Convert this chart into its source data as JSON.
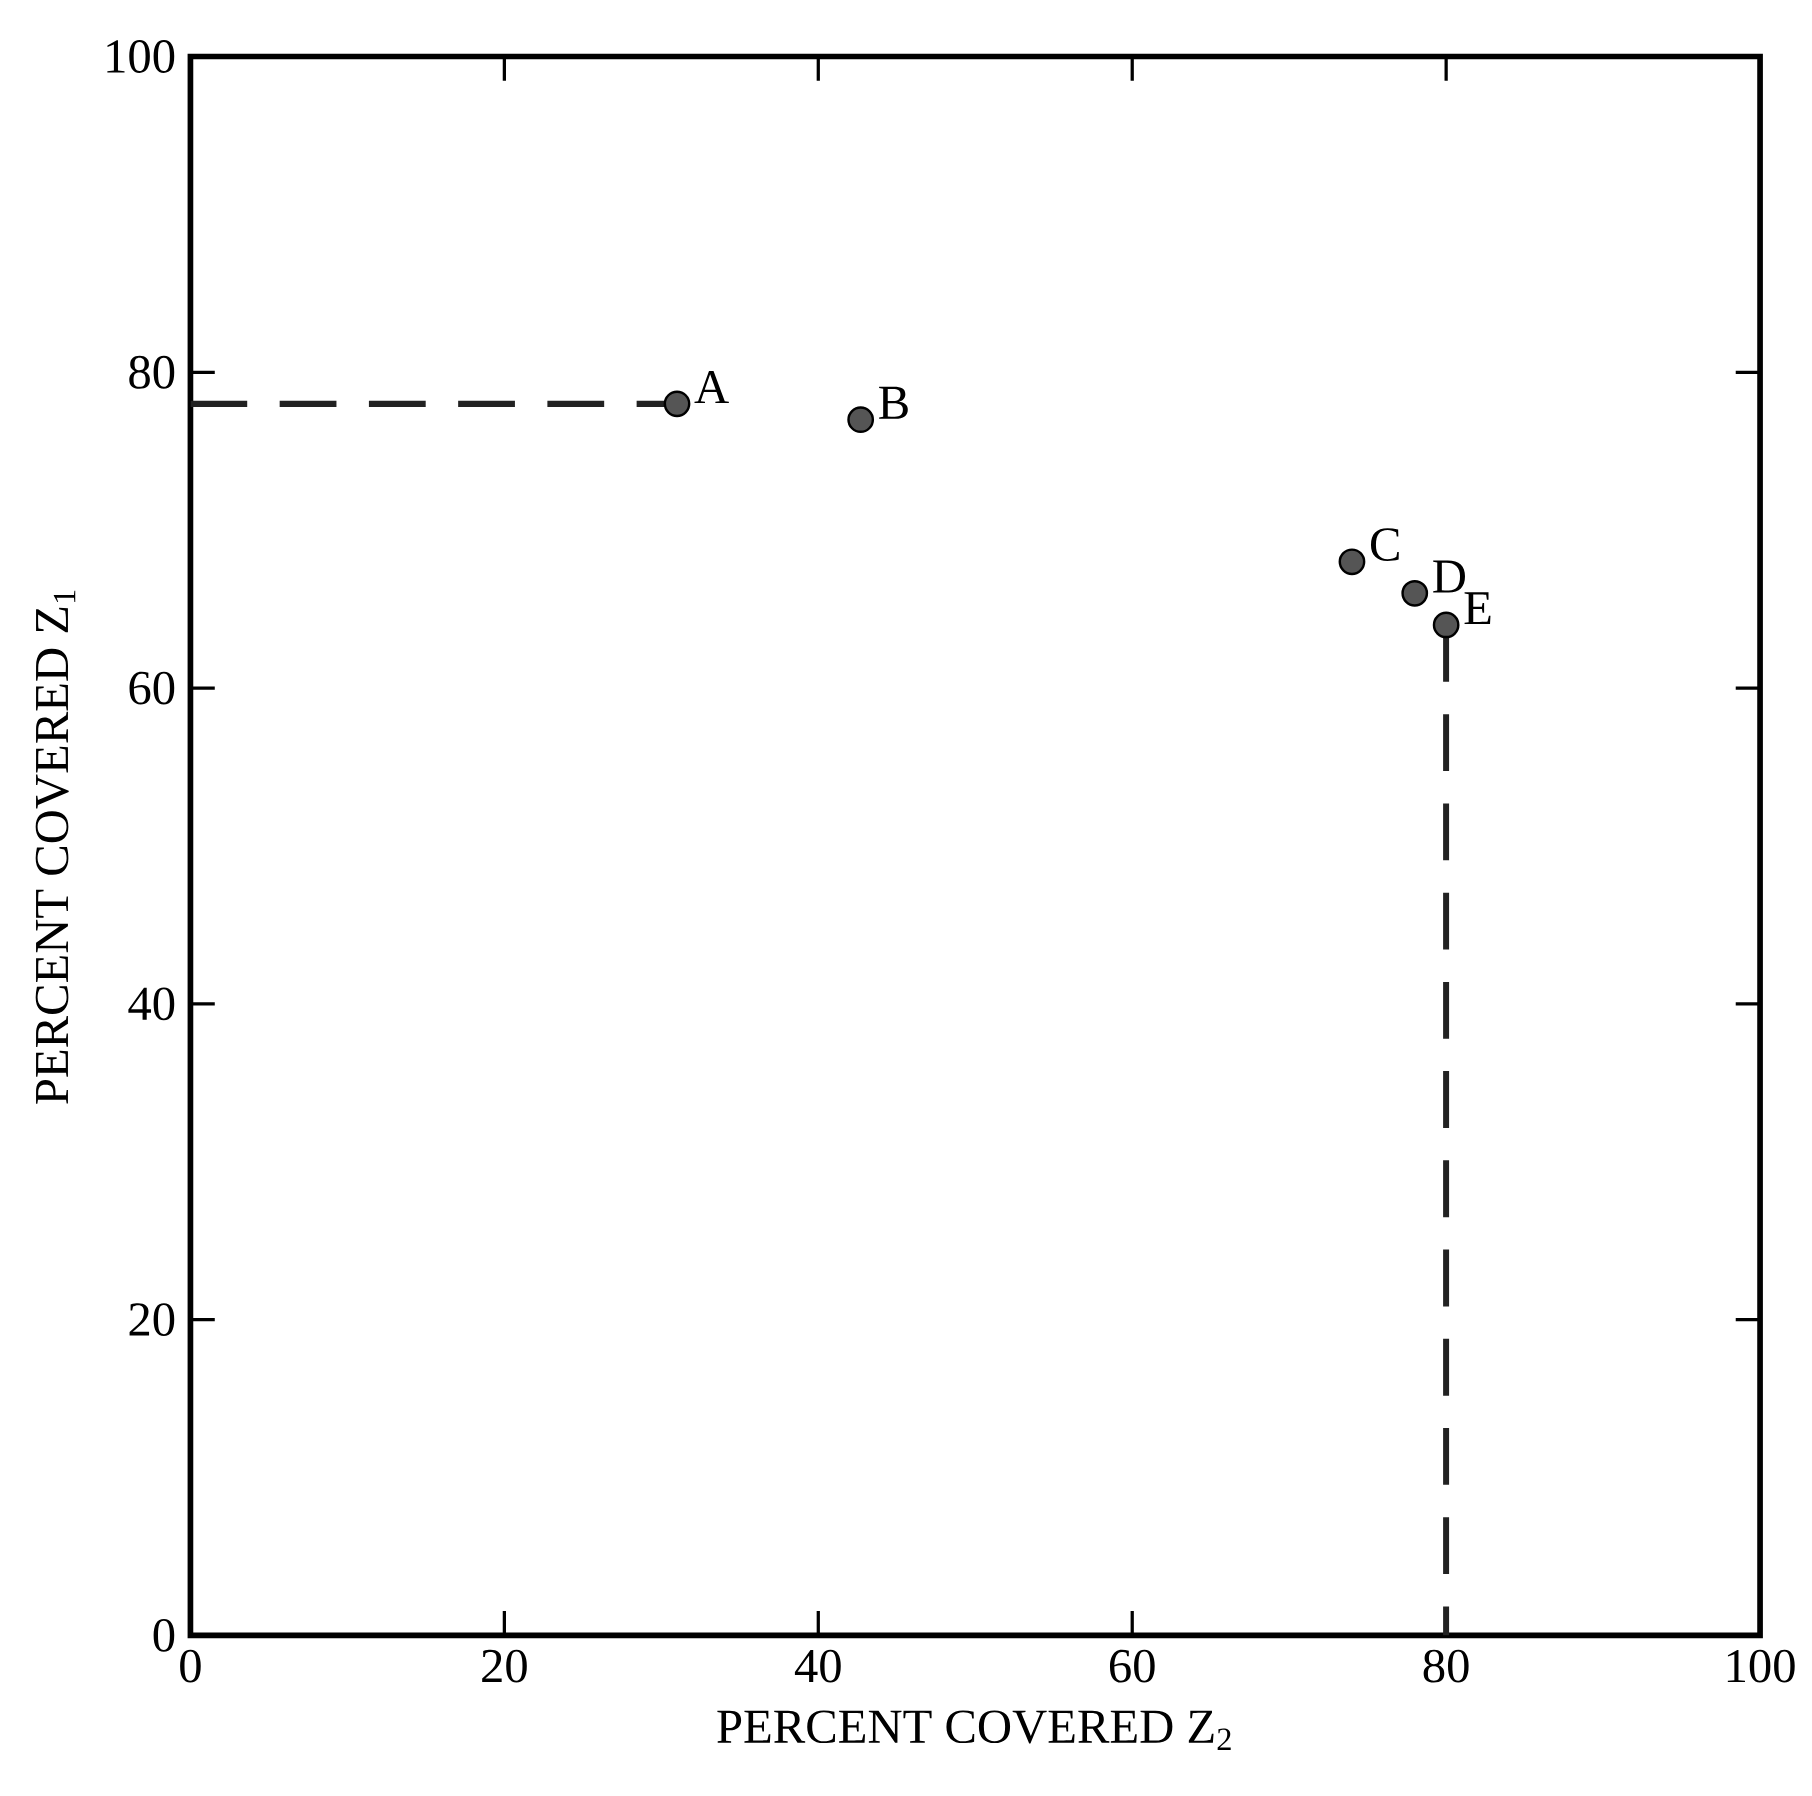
{
  "chart_data": {
    "type": "scatter",
    "xlabel": "PERCENT COVERED Z$_{2}$",
    "ylabel": "PERCENT COVERED Z$_{1}$",
    "xlim": [
      0,
      100
    ],
    "ylim": [
      0,
      100
    ],
    "xticks": [
      0,
      20,
      40,
      60,
      80,
      100
    ],
    "yticks": [
      0,
      20,
      40,
      60,
      80,
      100
    ],
    "grid": false,
    "series": [
      {
        "marker": "circle",
        "color": "#555555",
        "x": [
          31,
          42.7,
          74,
          78,
          80
        ],
        "values": [
          78,
          77,
          68,
          66,
          64
        ]
      },
      {
        "type": "line",
        "line_style": "dashed",
        "marker": "none",
        "color": "#222222",
        "x": [
          0,
          31
        ],
        "values": [
          78,
          78
        ]
      },
      {
        "type": "line",
        "line_style": "dashed",
        "marker": "none",
        "color": "#222222",
        "x": [
          80,
          80
        ],
        "values": [
          64,
          0
        ]
      }
    ],
    "annotations": [
      {
        "text": "A",
        "x": 31,
        "y": 78
      },
      {
        "text": "B",
        "x": 42.7,
        "y": 77
      },
      {
        "text": "C",
        "x": 74,
        "y": 68
      },
      {
        "text": "D",
        "x": 78,
        "y": 66
      },
      {
        "text": "E",
        "x": 80,
        "y": 64
      }
    ]
  }
}
